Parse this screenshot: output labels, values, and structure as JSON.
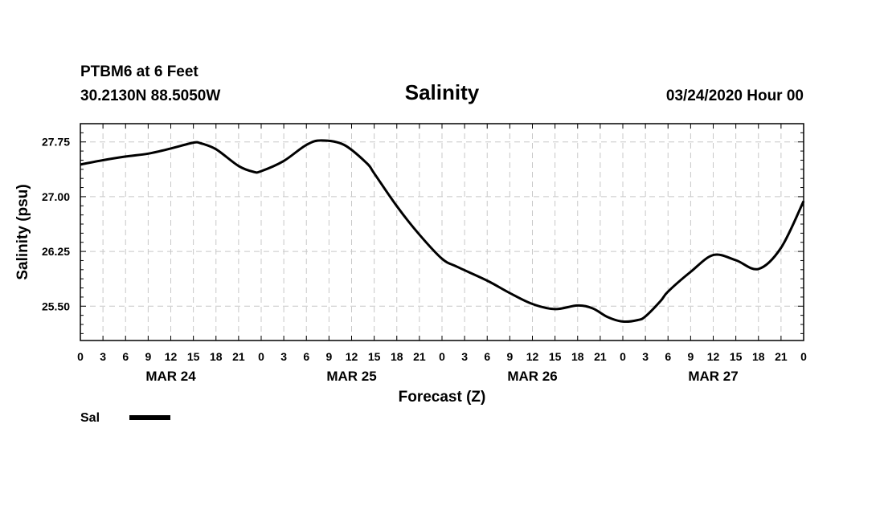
{
  "header": {
    "station": "PTBM6 at 6 Feet",
    "coords": "30.2130N 88.5050W",
    "datetime": "03/24/2020 Hour 00"
  },
  "chart_data": {
    "type": "line",
    "title": "Salinity",
    "ylabel": "Salinity (psu)",
    "xlabel": "Forecast (Z)",
    "ylim": [
      25.03,
      28.0
    ],
    "xlim": [
      0,
      96
    ],
    "y_ticks": [
      25.5,
      26.25,
      27.0,
      27.75
    ],
    "y_tick_labels": [
      "25.50",
      "26.25",
      "27.00",
      "27.75"
    ],
    "x_ticks": [
      0,
      3,
      6,
      9,
      12,
      15,
      18,
      21,
      24,
      27,
      30,
      33,
      36,
      39,
      42,
      45,
      48,
      51,
      54,
      57,
      60,
      63,
      66,
      69,
      72,
      75,
      78,
      81,
      84,
      87,
      90,
      93,
      96
    ],
    "x_tick_labels": [
      "0",
      "3",
      "6",
      "9",
      "12",
      "15",
      "18",
      "21",
      "0",
      "3",
      "6",
      "9",
      "12",
      "15",
      "18",
      "21",
      "0",
      "3",
      "6",
      "9",
      "12",
      "15",
      "18",
      "21",
      "0",
      "3",
      "6",
      "9",
      "12",
      "15",
      "18",
      "21",
      "0"
    ],
    "day_labels": [
      {
        "hour": 12,
        "label": "MAR 24"
      },
      {
        "hour": 36,
        "label": "MAR 25"
      },
      {
        "hour": 60,
        "label": "MAR 26"
      },
      {
        "hour": 84,
        "label": "MAR 27"
      }
    ],
    "grid": true,
    "legend_position": "bottom-left",
    "series": [
      {
        "name": "Sal",
        "color": "#000000",
        "x": [
          0,
          3,
          6,
          9,
          12,
          15,
          16,
          18,
          21,
          23,
          24,
          27,
          30,
          32,
          35,
          38,
          39,
          42,
          45,
          48,
          50,
          54,
          57,
          60,
          63,
          66,
          68,
          70,
          72,
          74,
          75,
          77,
          78,
          81,
          84,
          87,
          90,
          93,
          96
        ],
        "values": [
          27.44,
          27.5,
          27.55,
          27.59,
          27.66,
          27.74,
          27.73,
          27.65,
          27.42,
          27.34,
          27.35,
          27.49,
          27.71,
          27.77,
          27.71,
          27.46,
          27.32,
          26.87,
          26.48,
          26.15,
          26.04,
          25.85,
          25.68,
          25.53,
          25.46,
          25.51,
          25.47,
          25.35,
          25.29,
          25.31,
          25.36,
          25.57,
          25.7,
          25.97,
          26.2,
          26.13,
          26.01,
          26.3,
          26.94
        ]
      }
    ]
  }
}
